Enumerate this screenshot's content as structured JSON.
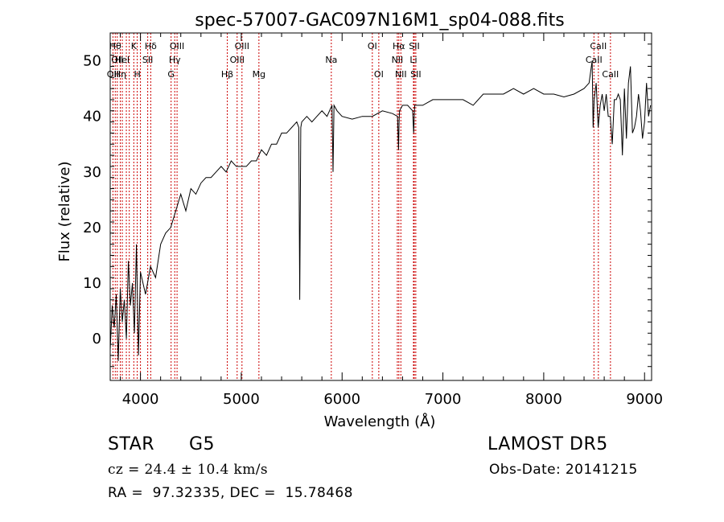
{
  "chart_data": {
    "type": "line",
    "title": "spec-57007-GAC097N16M1_sp04-088.fits",
    "xlabel": "Wavelength (Å)",
    "ylabel": "Flux (relative)",
    "xlim": [
      3700,
      9070
    ],
    "ylim": [
      -7.5,
      55
    ],
    "xticks": [
      4000,
      5000,
      6000,
      7000,
      8000,
      9000
    ],
    "yticks": [
      0,
      10,
      20,
      30,
      40,
      50
    ],
    "grid": false,
    "line_color": "#000000",
    "marker_color": "#cc0000",
    "series": [
      {
        "x": [
          3700,
          3720,
          3740,
          3760,
          3780,
          3800,
          3820,
          3840,
          3860,
          3880,
          3900,
          3920,
          3940,
          3960,
          3980,
          4000,
          4050,
          4100,
          4150,
          4200,
          4250,
          4300,
          4350,
          4400,
          4450,
          4500,
          4550,
          4600,
          4650,
          4700,
          4750,
          4800,
          4850,
          4900,
          4950,
          5000,
          5050,
          5100,
          5150,
          5200,
          5250,
          5300,
          5350,
          5400,
          5450,
          5500,
          5550,
          5570,
          5580,
          5590,
          5600,
          5650,
          5700,
          5750,
          5800,
          5850,
          5900,
          5910,
          5920,
          5950,
          6000,
          6100,
          6200,
          6300,
          6400,
          6500,
          6550,
          6560,
          6565,
          6570,
          6600,
          6650,
          6700,
          6710,
          6720,
          6800,
          6900,
          7000,
          7100,
          7200,
          7300,
          7400,
          7500,
          7600,
          7700,
          7800,
          7900,
          8000,
          8100,
          8200,
          8300,
          8400,
          8450,
          8480,
          8490,
          8500,
          8520,
          8540,
          8560,
          8580,
          8600,
          8620,
          8640,
          8660,
          8680,
          8700,
          8720,
          8740,
          8760,
          8780,
          8800,
          8820,
          8840,
          8860,
          8880,
          8900,
          8920,
          8940,
          8960,
          8980,
          9000,
          9020,
          9040,
          9060
        ],
        "y": [
          -2,
          6,
          2,
          8,
          -4,
          9,
          3,
          7,
          0,
          14,
          6,
          10,
          1,
          17,
          -3,
          12,
          8,
          13,
          11,
          17,
          19,
          20,
          23,
          26,
          23,
          27,
          26,
          28,
          29,
          29,
          30,
          31,
          30,
          32,
          31,
          31,
          31,
          32,
          32,
          34,
          33,
          35,
          35,
          37,
          37,
          38,
          39,
          38,
          7,
          38,
          39,
          40,
          39,
          40,
          41,
          40,
          42,
          30,
          42,
          41,
          40,
          39.5,
          40,
          40,
          41,
          40.5,
          40,
          34,
          39,
          41,
          42,
          42,
          41,
          37,
          42,
          42,
          43,
          43,
          43,
          43,
          42,
          44,
          44,
          44,
          45,
          44,
          45,
          44,
          44,
          43.5,
          44,
          45,
          46,
          50,
          38,
          43,
          46,
          38,
          42,
          44,
          41,
          44,
          40,
          40,
          35,
          43,
          43,
          44,
          43,
          33,
          45,
          36,
          46,
          49,
          37,
          38,
          40,
          44,
          41,
          36,
          39,
          46,
          40,
          42
        ]
      }
    ],
    "line_markers": [
      {
        "wavelength": 3727,
        "label": "OII",
        "row": 3
      },
      {
        "wavelength": 3750,
        "label": "Hθ",
        "row": 1
      },
      {
        "wavelength": 3770,
        "label": "OII",
        "row": 2
      },
      {
        "wavelength": 3800,
        "label": "Hη",
        "row": 3
      },
      {
        "wavelength": 3820,
        "label": "HeI",
        "row": 2
      },
      {
        "wavelength": 3860,
        "label": "",
        "row": 0
      },
      {
        "wavelength": 3889,
        "label": "",
        "row": 0
      },
      {
        "wavelength": 3934,
        "label": "K",
        "row": 1
      },
      {
        "wavelength": 3968,
        "label": "H",
        "row": 3
      },
      {
        "wavelength": 4000,
        "label": "",
        "row": 0
      },
      {
        "wavelength": 4072,
        "label": "SII",
        "row": 2
      },
      {
        "wavelength": 4102,
        "label": "Hδ",
        "row": 1
      },
      {
        "wavelength": 4304,
        "label": "G",
        "row": 3
      },
      {
        "wavelength": 4340,
        "label": "Hγ",
        "row": 2
      },
      {
        "wavelength": 4363,
        "label": "OIII",
        "row": 1
      },
      {
        "wavelength": 4861,
        "label": "Hβ",
        "row": 3
      },
      {
        "wavelength": 4959,
        "label": "OIII",
        "row": 2
      },
      {
        "wavelength": 5007,
        "label": "OIII",
        "row": 1
      },
      {
        "wavelength": 5175,
        "label": "Mg",
        "row": 3
      },
      {
        "wavelength": 5893,
        "label": "Na",
        "row": 2
      },
      {
        "wavelength": 6300,
        "label": "OI",
        "row": 1
      },
      {
        "wavelength": 6364,
        "label": "OI",
        "row": 3
      },
      {
        "wavelength": 6548,
        "label": "NII",
        "row": 2
      },
      {
        "wavelength": 6563,
        "label": "Hα",
        "row": 1
      },
      {
        "wavelength": 6583,
        "label": "NII",
        "row": 3
      },
      {
        "wavelength": 6708,
        "label": "Li",
        "row": 2
      },
      {
        "wavelength": 6716,
        "label": "SII",
        "row": 1
      },
      {
        "wavelength": 6731,
        "label": "SII",
        "row": 3
      },
      {
        "wavelength": 8498,
        "label": "CaII",
        "row": 2
      },
      {
        "wavelength": 8542,
        "label": "CaII",
        "row": 1
      },
      {
        "wavelength": 8662,
        "label": "CaII",
        "row": 3
      }
    ]
  },
  "info": {
    "object_class": "STAR",
    "subclass": "G5",
    "survey": "LAMOST DR5",
    "velocity": "cz = 24.4 ± 10.4 km/s",
    "obs_date": "Obs-Date: 20141215",
    "coords": "RA =  97.32335, DEC =  15.78468"
  }
}
